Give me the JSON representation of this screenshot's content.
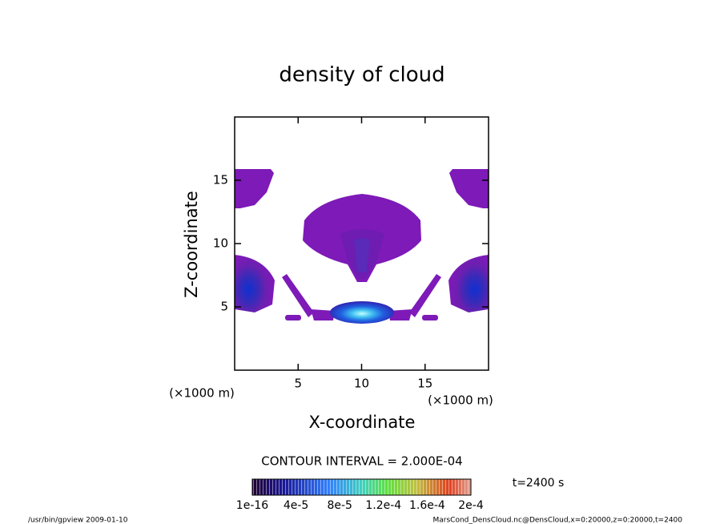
{
  "chart_data": {
    "type": "contour",
    "title": "density of cloud",
    "x_label": "X-coordinate",
    "y_label": "Z-coordinate",
    "x_unit": "(×1000 m)",
    "y_unit": "(×1000 m)",
    "xlim": [
      0,
      20
    ],
    "ylim": [
      0,
      20
    ],
    "xticks": [
      5,
      10,
      15
    ],
    "yticks": [
      5,
      10,
      15
    ],
    "contour_interval": "CONTOUR INTERVAL = 2.000E-04",
    "clim": [
      1e-16,
      0.0002
    ],
    "colorbar_ticks": [
      {
        "value": 1e-16,
        "label": "1e-16"
      },
      {
        "value": 4e-05,
        "label": "4e-5"
      },
      {
        "value": 8e-05,
        "label": "8e-5"
      },
      {
        "value": 0.00012,
        "label": "1.2e-4"
      },
      {
        "value": 0.00016,
        "label": "1.6e-4"
      },
      {
        "value": 0.0002,
        "label": "2e-4"
      }
    ],
    "time_label": "t=2400 s",
    "footer_left": "/usr/bin/gpview  2009-01-10",
    "footer_right": "MarsCond_DensCloud.nc@DensCloud,x=0:20000,z=0:20000,t=2400"
  }
}
